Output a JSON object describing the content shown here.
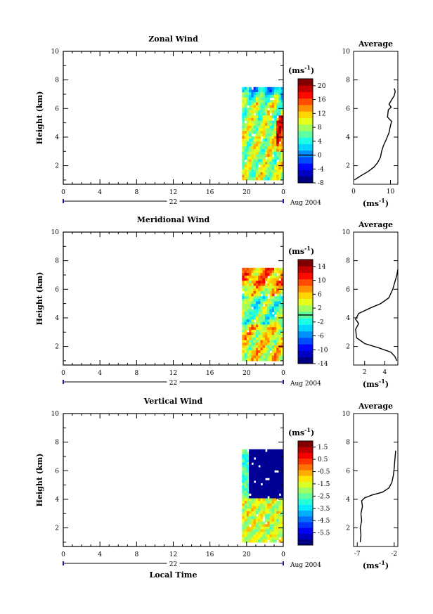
{
  "figure": {
    "month_label": "Aug 2004",
    "day_label": "22",
    "xlabel": "Local Time",
    "x_ticks": [
      "0",
      "4",
      "8",
      "12",
      "16",
      "20",
      "0"
    ],
    "unit_label": "(ms",
    "unit_exp": "-1",
    "unit_close": ")"
  },
  "chart_data": [
    {
      "type": "heatmap",
      "title": "Zonal Wind",
      "ylabel": "Height (km)",
      "xlim": [
        0,
        24
      ],
      "ylim": [
        0.7,
        10
      ],
      "y_ticks": [
        "2",
        "4",
        "6",
        "8",
        "10"
      ],
      "data_x_range": [
        19.5,
        24
      ],
      "data_y_range": [
        1.0,
        7.5
      ],
      "colorbar": {
        "levels": [
          -8,
          -6,
          -4,
          -2,
          0,
          2,
          4,
          6,
          8,
          10,
          12,
          14,
          16,
          18,
          20,
          22
        ],
        "tick_labels": [
          "20",
          "16",
          "12",
          "8",
          "4",
          "0",
          "-4",
          "-8"
        ],
        "min": -8,
        "max": 22,
        "contour_level": 0
      },
      "average": {
        "title": "Average",
        "xlim": [
          0,
          12
        ],
        "x_ticks": [
          "0",
          "10"
        ],
        "y_ticks": [
          "2",
          "4",
          "6",
          "8",
          "10"
        ],
        "x_unit_label": "(ms",
        "x_unit_exp": "-1",
        "x_unit_close": ")",
        "profile": [
          [
            0.2,
            1.0
          ],
          [
            2,
            1.3
          ],
          [
            4,
            1.6
          ],
          [
            5.5,
            1.9
          ],
          [
            6.5,
            2.2
          ],
          [
            7.3,
            2.6
          ],
          [
            7.6,
            3.0
          ],
          [
            8.1,
            3.4
          ],
          [
            8.8,
            3.8
          ],
          [
            9.6,
            4.3
          ],
          [
            10.0,
            4.8
          ],
          [
            10.3,
            5.1
          ],
          [
            9.2,
            5.4
          ],
          [
            9.4,
            5.9
          ],
          [
            10.2,
            6.1
          ],
          [
            9.6,
            6.3
          ],
          [
            10.3,
            6.6
          ],
          [
            11.0,
            6.9
          ],
          [
            11.3,
            7.2
          ],
          [
            11.0,
            7.4
          ]
        ]
      }
    },
    {
      "type": "heatmap",
      "title": "Meridional Wind",
      "ylabel": "Height (km)",
      "xlim": [
        0,
        24
      ],
      "ylim": [
        0.7,
        10
      ],
      "y_ticks": [
        "2",
        "4",
        "6",
        "8",
        "10"
      ],
      "data_x_range": [
        19.5,
        24
      ],
      "data_y_range": [
        1.0,
        7.5
      ],
      "colorbar": {
        "levels": [
          -14,
          -12,
          -10,
          -8,
          -6,
          -4,
          -2,
          0,
          2,
          4,
          6,
          8,
          10,
          12,
          14,
          16
        ],
        "tick_labels": [
          "14",
          "10",
          "6",
          "2",
          "-2",
          "-6",
          "-10",
          "-14"
        ],
        "min": -14,
        "max": 16,
        "contour_level": 0
      },
      "average": {
        "title": "Average",
        "xlim": [
          0.9,
          5.3
        ],
        "x_ticks": [
          "2",
          "4"
        ],
        "y_ticks": [
          "2",
          "4",
          "6",
          "8",
          "10"
        ],
        "x_unit_label": "(ms",
        "x_unit_exp": "-1",
        "x_unit_close": ")",
        "profile": [
          [
            5.2,
            1.0
          ],
          [
            5.0,
            1.3
          ],
          [
            4.6,
            1.6
          ],
          [
            3.4,
            1.9
          ],
          [
            2.0,
            2.2
          ],
          [
            1.2,
            2.6
          ],
          [
            1.1,
            3.2
          ],
          [
            1.4,
            3.6
          ],
          [
            1.1,
            3.9
          ],
          [
            1.4,
            4.3
          ],
          [
            2.6,
            4.7
          ],
          [
            3.6,
            5.0
          ],
          [
            4.4,
            5.4
          ],
          [
            4.8,
            6.0
          ],
          [
            5.0,
            6.5
          ],
          [
            5.2,
            7.0
          ],
          [
            5.3,
            7.4
          ]
        ]
      }
    },
    {
      "type": "heatmap",
      "title": "Vertical Wind",
      "ylabel": "Height (km)",
      "xlim": [
        0,
        24
      ],
      "ylim": [
        0.7,
        10
      ],
      "y_ticks": [
        "2",
        "4",
        "6",
        "8",
        "10"
      ],
      "data_x_range": [
        19.5,
        24
      ],
      "data_y_range": [
        1.0,
        7.5
      ],
      "colorbar": {
        "levels": [
          -6.5,
          -6,
          -5.5,
          -5,
          -4.5,
          -4,
          -3.5,
          -3,
          -2.5,
          -2,
          -1.5,
          -1,
          -0.5,
          0,
          0.5,
          1,
          1.5,
          2
        ],
        "tick_labels": [
          "1.5",
          "0.5",
          "-0.5",
          "-1.5",
          "-2.5",
          "-3.5",
          "-4.5",
          "-5.5"
        ],
        "min": -6.5,
        "max": 2,
        "contour_level": null
      },
      "average": {
        "title": "Average",
        "xlim": [
          -7.5,
          -1.5
        ],
        "x_ticks": [
          "-7",
          "-2"
        ],
        "y_ticks": [
          "2",
          "4",
          "6",
          "8",
          "10"
        ],
        "x_unit_label": "(ms",
        "x_unit_exp": "-1",
        "x_unit_close": ")",
        "profile": [
          [
            -6.6,
            1.0
          ],
          [
            -6.5,
            1.5
          ],
          [
            -6.6,
            2.0
          ],
          [
            -6.4,
            2.5
          ],
          [
            -6.5,
            3.0
          ],
          [
            -6.3,
            3.5
          ],
          [
            -6.4,
            3.9
          ],
          [
            -6.0,
            4.1
          ],
          [
            -5.0,
            4.3
          ],
          [
            -3.6,
            4.5
          ],
          [
            -2.7,
            4.8
          ],
          [
            -2.3,
            5.2
          ],
          [
            -2.1,
            5.7
          ],
          [
            -2.0,
            6.2
          ],
          [
            -1.9,
            6.8
          ],
          [
            -1.8,
            7.4
          ]
        ]
      }
    }
  ]
}
